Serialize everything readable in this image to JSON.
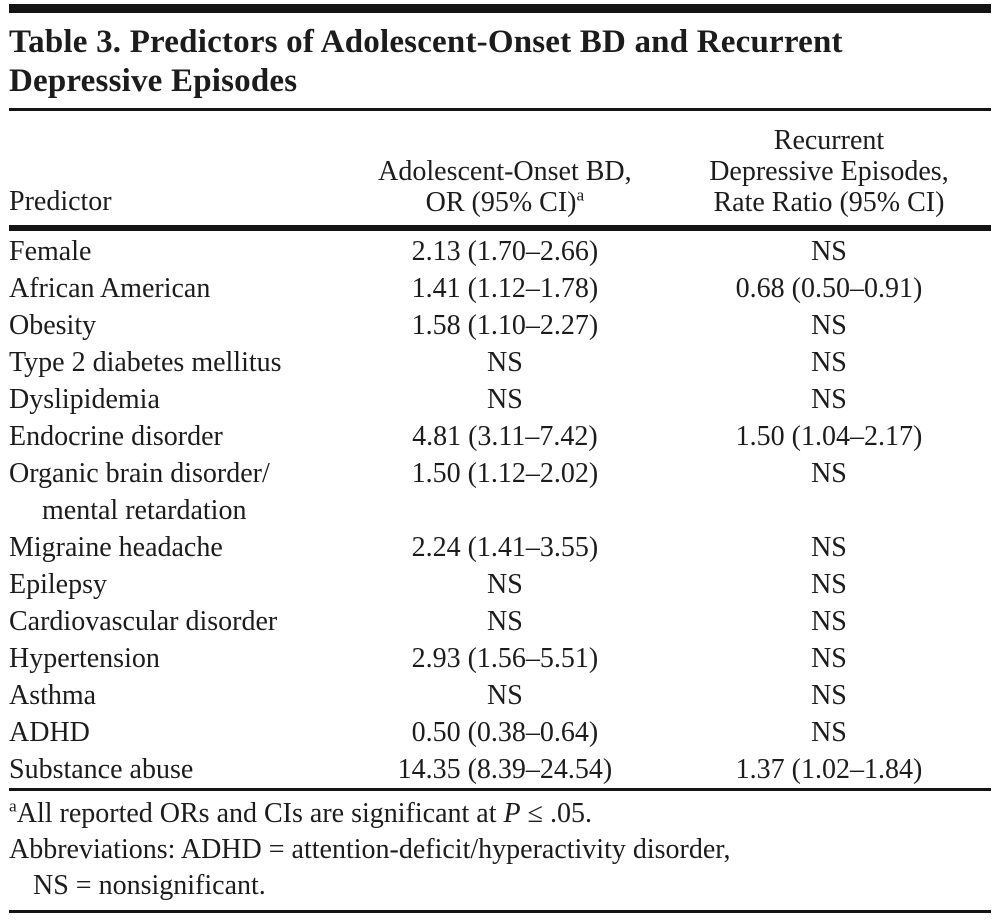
{
  "title": {
    "line1": "Table 3. Predictors of Adolescent-Onset BD and Recurrent",
    "line2": "Depressive Episodes"
  },
  "table": {
    "header": {
      "col1": "Predictor",
      "col2_line1": "Adolescent-Onset BD,",
      "col2_line2": "OR (95% CI)",
      "col2_superscript": "a",
      "col3_line1": "Recurrent",
      "col3_line2": "Depressive Episodes,",
      "col3_line3": "Rate Ratio (95% CI)"
    },
    "rows": [
      {
        "predictor": "Female",
        "or": "2.13 (1.70–2.66)",
        "rr": "NS"
      },
      {
        "predictor": "African American",
        "or": "1.41 (1.12–1.78)",
        "rr": "0.68 (0.50–0.91)"
      },
      {
        "predictor": "Obesity",
        "or": "1.58 (1.10–2.27)",
        "rr": "NS"
      },
      {
        "predictor": "Type 2 diabetes mellitus",
        "or": "NS",
        "rr": "NS"
      },
      {
        "predictor": "Dyslipidemia",
        "or": "NS",
        "rr": "NS"
      },
      {
        "predictor": "Endocrine disorder",
        "or": "4.81 (3.11–7.42)",
        "rr": "1.50 (1.04–2.17)"
      },
      {
        "predictor": "Organic brain disorder/",
        "predictor_line2": "mental retardation",
        "or": "1.50 (1.12–2.02)",
        "rr": "NS"
      },
      {
        "predictor": "Migraine headache",
        "or": "2.24 (1.41–3.55)",
        "rr": "NS"
      },
      {
        "predictor": "Epilepsy",
        "or": "NS",
        "rr": "NS"
      },
      {
        "predictor": "Cardiovascular disorder",
        "or": "NS",
        "rr": "NS"
      },
      {
        "predictor": "Hypertension",
        "or": "2.93 (1.56–5.51)",
        "rr": "NS"
      },
      {
        "predictor": "Asthma",
        "or": "NS",
        "rr": "NS"
      },
      {
        "predictor": "ADHD",
        "or": "0.50 (0.38–0.64)",
        "rr": "NS"
      },
      {
        "predictor": "Substance abuse",
        "or": "14.35 (8.39–24.54)",
        "rr": "1.37 (1.02–1.84)"
      }
    ]
  },
  "footnotes": {
    "a_marker": "a",
    "a_text_pre": "All reported ORs and CIs are significant at ",
    "a_p_italic": "P",
    "a_text_post": " ≤ .05.",
    "abbrev_line1": "Abbreviations: ADHD = attention-deficit/hyperactivity disorder,",
    "abbrev_line2": "NS = nonsignificant."
  },
  "colors": {
    "text": "#1c1c1c",
    "rule": "#141414",
    "background": "#ffffff"
  }
}
